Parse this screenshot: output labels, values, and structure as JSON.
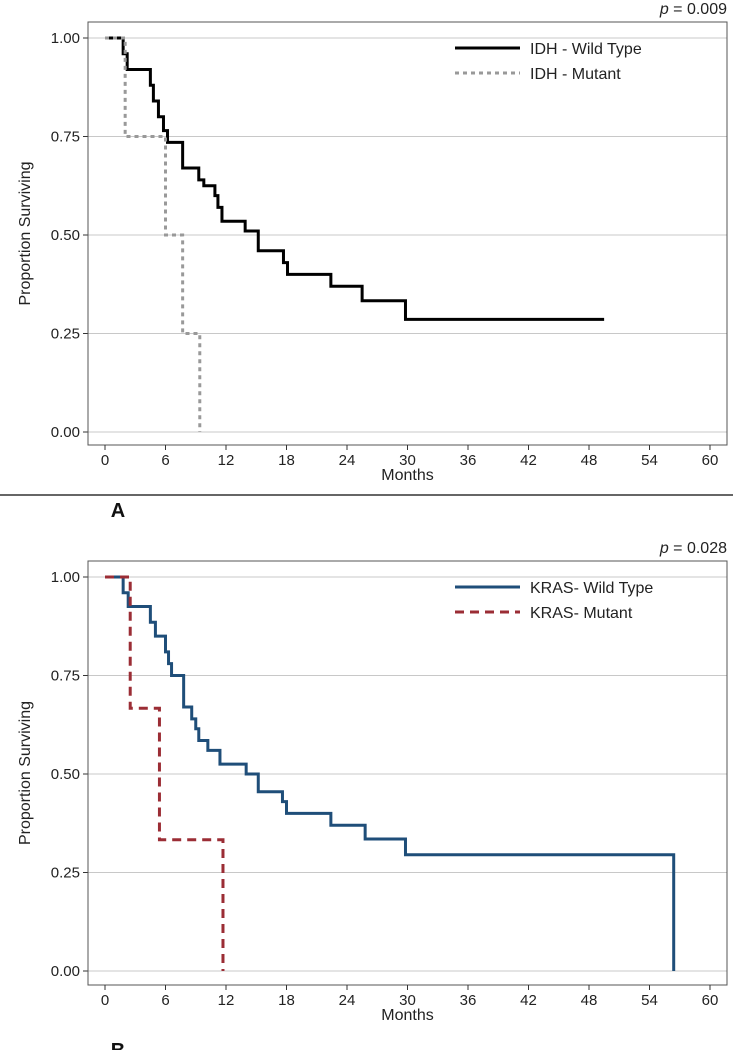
{
  "chart_data": [
    {
      "type": "line",
      "panel_label": "A",
      "p_prefix": "p",
      "p_value": " = 0.009",
      "xlabel": "Months",
      "ylabel": "Proportion Surviving",
      "xlim": [
        0,
        60
      ],
      "ylim": [
        0,
        1
      ],
      "xticks": [
        "0",
        "6",
        "12",
        "18",
        "24",
        "30",
        "36",
        "42",
        "48",
        "54",
        "60"
      ],
      "yticks": [
        "0.00",
        "0.25",
        "0.50",
        "0.75",
        "1.00"
      ],
      "grid": true,
      "legend_position": "top-right",
      "series": [
        {
          "name": "IDH - Wild Type",
          "color": "#000000",
          "dash": "solid",
          "steps": [
            [
              0,
              1
            ],
            [
              1.8,
              0.96
            ],
            [
              2.2,
              0.92
            ],
            [
              4.5,
              0.88
            ],
            [
              4.8,
              0.84
            ],
            [
              5.3,
              0.8
            ],
            [
              5.8,
              0.765
            ],
            [
              6.2,
              0.735
            ],
            [
              7.7,
              0.67
            ],
            [
              9.3,
              0.64
            ],
            [
              9.8,
              0.625
            ],
            [
              10.9,
              0.6
            ],
            [
              11.2,
              0.57
            ],
            [
              11.6,
              0.535
            ],
            [
              13.9,
              0.51
            ],
            [
              15.2,
              0.46
            ],
            [
              17.7,
              0.43
            ],
            [
              18.1,
              0.4
            ],
            [
              22.4,
              0.37
            ],
            [
              25.5,
              0.333
            ],
            [
              29.8,
              0.286
            ],
            [
              49.5,
              0.286
            ]
          ]
        },
        {
          "name": "IDH - Mutant",
          "color": "#999999",
          "dash": "dotted",
          "steps": [
            [
              0,
              1
            ],
            [
              2.0,
              0.75
            ],
            [
              6.0,
              0.5
            ],
            [
              7.7,
              0.25
            ],
            [
              9.4,
              0
            ]
          ]
        }
      ]
    },
    {
      "type": "line",
      "panel_label": "B",
      "p_prefix": "p",
      "p_value": " = 0.028",
      "xlabel": "Months",
      "ylabel": "Proportion Surviving",
      "xlim": [
        0,
        60
      ],
      "ylim": [
        0,
        1
      ],
      "xticks": [
        "0",
        "6",
        "12",
        "18",
        "24",
        "30",
        "36",
        "42",
        "48",
        "54",
        "60"
      ],
      "yticks": [
        "0.00",
        "0.25",
        "0.50",
        "0.75",
        "1.00"
      ],
      "grid": true,
      "legend_position": "top-right",
      "series": [
        {
          "name": "KRAS- Wild Type",
          "color": "#1f4e79",
          "dash": "solid",
          "steps": [
            [
              0,
              1
            ],
            [
              1.8,
              0.96
            ],
            [
              2.3,
              0.925
            ],
            [
              4.5,
              0.885
            ],
            [
              5.0,
              0.85
            ],
            [
              6.0,
              0.81
            ],
            [
              6.3,
              0.78
            ],
            [
              6.6,
              0.75
            ],
            [
              7.8,
              0.67
            ],
            [
              8.6,
              0.64
            ],
            [
              9.0,
              0.615
            ],
            [
              9.3,
              0.585
            ],
            [
              10.2,
              0.56
            ],
            [
              11.4,
              0.525
            ],
            [
              14.0,
              0.5
            ],
            [
              15.2,
              0.455
            ],
            [
              17.6,
              0.43
            ],
            [
              18.0,
              0.4
            ],
            [
              22.4,
              0.37
            ],
            [
              25.8,
              0.335
            ],
            [
              29.8,
              0.295
            ],
            [
              56.4,
              0.295
            ],
            [
              56.4,
              0
            ]
          ]
        },
        {
          "name": "KRAS- Mutant",
          "color": "#9b2d35",
          "dash": "dashed",
          "steps": [
            [
              0,
              1
            ],
            [
              2.5,
              0.667
            ],
            [
              5.4,
              0.333
            ],
            [
              11.7,
              0
            ],
            [
              11.7,
              0
            ]
          ]
        }
      ]
    }
  ]
}
